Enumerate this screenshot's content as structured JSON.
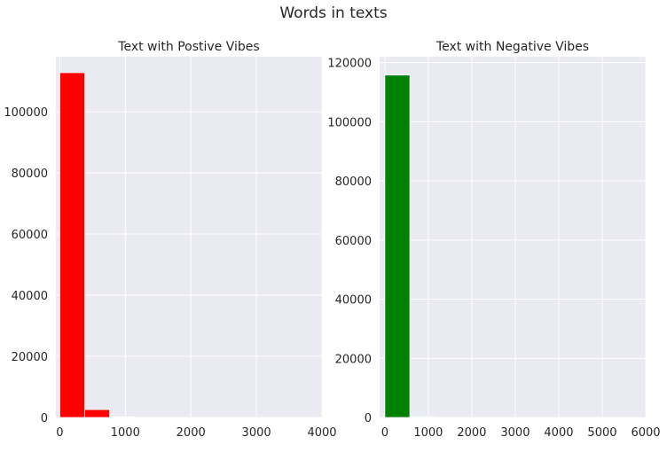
{
  "figure": {
    "suptitle": "Words in texts"
  },
  "colors": {
    "panel_bg": "#eaeaf2",
    "grid": "#ffffff",
    "positive_bar": "#ff0000",
    "negative_bar": "#008000"
  },
  "chart_data": [
    {
      "type": "bar",
      "subtype": "histogram",
      "title": "Text with Postive Vibes",
      "xlabel": "",
      "ylabel": "",
      "xlim": [
        -60,
        4000
      ],
      "ylim": [
        0,
        118000
      ],
      "xticks": [
        0,
        1000,
        2000,
        3000,
        4000
      ],
      "yticks": [
        0,
        20000,
        40000,
        60000,
        80000,
        100000
      ],
      "grid": true,
      "bar_color": "#ff0000",
      "bins": [
        {
          "x0": 0,
          "x1": 380,
          "value": 112800
        },
        {
          "x0": 380,
          "x1": 760,
          "value": 2600
        },
        {
          "x0": 760,
          "x1": 1140,
          "value": 200
        },
        {
          "x0": 1140,
          "x1": 1520,
          "value": 40
        },
        {
          "x0": 1520,
          "x1": 1900,
          "value": 10
        }
      ]
    },
    {
      "type": "bar",
      "subtype": "histogram",
      "title": "Text with Negative Vibes",
      "xlabel": "",
      "ylabel": "",
      "xlim": [
        -120,
        6000
      ],
      "ylim": [
        0,
        122000
      ],
      "xticks": [
        0,
        1000,
        2000,
        3000,
        4000,
        5000,
        6000
      ],
      "yticks": [
        0,
        20000,
        40000,
        60000,
        80000,
        100000,
        120000
      ],
      "grid": true,
      "bar_color": "#008000",
      "bins": [
        {
          "x0": 0,
          "x1": 575,
          "value": 115800
        },
        {
          "x0": 575,
          "x1": 1150,
          "value": 250
        }
      ]
    }
  ]
}
